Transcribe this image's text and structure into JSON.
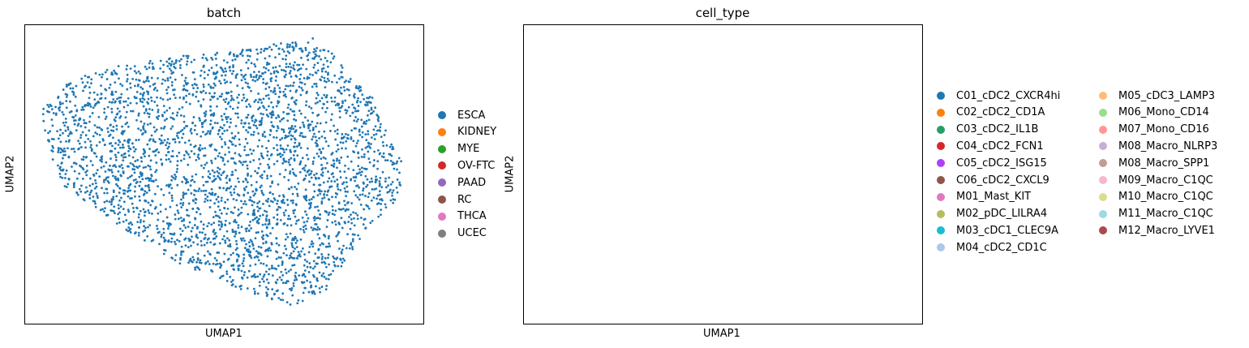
{
  "chart_data": [
    {
      "type": "scatter",
      "title": "batch",
      "xlabel": "UMAP1",
      "ylabel": "UMAP2",
      "grid": false,
      "legend_position": "right",
      "legend": [
        {
          "label": "ESCA",
          "color": "#1f77b4"
        },
        {
          "label": "KIDNEY",
          "color": "#ff7f0e"
        },
        {
          "label": "MYE",
          "color": "#2ca02c"
        },
        {
          "label": "OV-FTC",
          "color": "#d62728"
        },
        {
          "label": "PAAD",
          "color": "#9467bd"
        },
        {
          "label": "RC",
          "color": "#8c564b"
        },
        {
          "label": "THCA",
          "color": "#e377c2"
        },
        {
          "label": "UCEC",
          "color": "#7f7f7f"
        }
      ]
    },
    {
      "type": "scatter",
      "title": "cell_type",
      "xlabel": "UMAP1",
      "ylabel": "UMAP2",
      "grid": false,
      "legend_position": "right",
      "legend": [
        {
          "label": "C01_cDC2_CXCR4hi",
          "color": "#1f77b4"
        },
        {
          "label": "C02_cDC2_CD1A",
          "color": "#ff7f0e"
        },
        {
          "label": "C03_cDC2_IL1B",
          "color": "#279e68"
        },
        {
          "label": "C04_cDC2_FCN1",
          "color": "#d62728"
        },
        {
          "label": "C05_cDC2_ISG15",
          "color": "#aa40fc"
        },
        {
          "label": "C06_cDC2_CXCL9",
          "color": "#8c564b"
        },
        {
          "label": "M01_Mast_KIT",
          "color": "#e377c2"
        },
        {
          "label": "M02_pDC_LILRA4",
          "color": "#b5bd61"
        },
        {
          "label": "M03_cDC1_CLEC9A",
          "color": "#17becf"
        },
        {
          "label": "M04_cDC2_CD1C",
          "color": "#aec7e8"
        },
        {
          "label": "M05_cDC3_LAMP3",
          "color": "#ffbb78"
        },
        {
          "label": "M06_Mono_CD14",
          "color": "#98df8a"
        },
        {
          "label": "M07_Mono_CD16",
          "color": "#ff9896"
        },
        {
          "label": "M08_Macro_NLRP3",
          "color": "#c5b0d5"
        },
        {
          "label": "M08_Macro_SPP1",
          "color": "#c49c94"
        },
        {
          "label": "M09_Macro_C1QC",
          "color": "#f7b6d2"
        },
        {
          "label": "M10_Macro_C1QC",
          "color": "#dbdb8d"
        },
        {
          "label": "M11_Macro_C1QC",
          "color": "#9edae5"
        },
        {
          "label": "M12_Macro_LYVE1",
          "color": "#ad494a"
        }
      ]
    }
  ]
}
